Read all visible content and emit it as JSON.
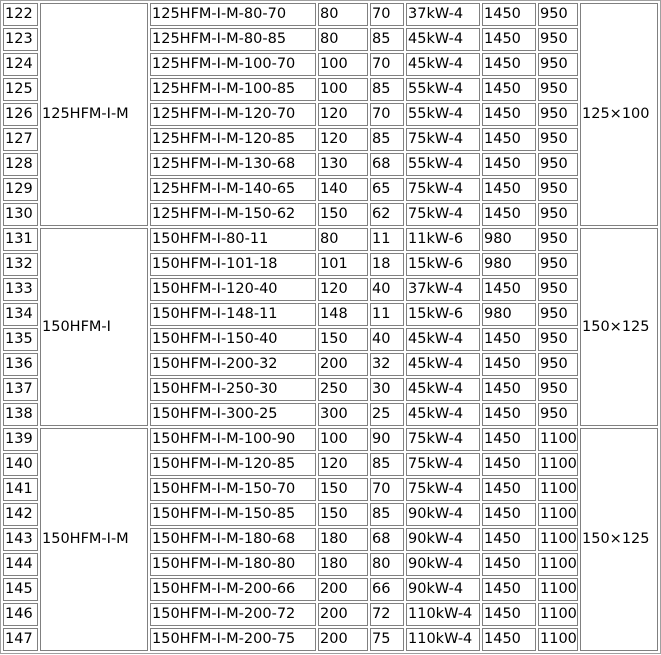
{
  "table": {
    "groups": [
      {
        "series": "125HFM-I-M",
        "size": "125×100",
        "rows": [
          [
            "122",
            "125HFM-I-M-80-70",
            "80",
            "70",
            "37kW-4",
            "1450",
            "950"
          ],
          [
            "123",
            "125HFM-I-M-80-85",
            "80",
            "85",
            "45kW-4",
            "1450",
            "950"
          ],
          [
            "124",
            "125HFM-I-M-100-70",
            "100",
            "70",
            "45kW-4",
            "1450",
            "950"
          ],
          [
            "125",
            "125HFM-I-M-100-85",
            "100",
            "85",
            "55kW-4",
            "1450",
            "950"
          ],
          [
            "126",
            "125HFM-I-M-120-70",
            "120",
            "70",
            "55kW-4",
            "1450",
            "950"
          ],
          [
            "127",
            "125HFM-I-M-120-85",
            "120",
            "85",
            "75kW-4",
            "1450",
            "950"
          ],
          [
            "128",
            "125HFM-I-M-130-68",
            "130",
            "68",
            "55kW-4",
            "1450",
            "950"
          ],
          [
            "129",
            "125HFM-I-M-140-65",
            "140",
            "65",
            "75kW-4",
            "1450",
            "950"
          ],
          [
            "130",
            "125HFM-I-M-150-62",
            "150",
            "62",
            "75kW-4",
            "1450",
            "950"
          ]
        ]
      },
      {
        "series": "150HFM-I",
        "size": "150×125",
        "rows": [
          [
            "131",
            "150HFM-I-80-11",
            "80",
            "11",
            "11kW-6",
            "980",
            "950"
          ],
          [
            "132",
            "150HFM-I-101-18",
            "101",
            "18",
            "15kW-6",
            "980",
            "950"
          ],
          [
            "133",
            "150HFM-I-120-40",
            "120",
            "40",
            "37kW-4",
            "1450",
            "950"
          ],
          [
            "134",
            "150HFM-I-148-11",
            "148",
            "11",
            "15kW-6",
            "980",
            "950"
          ],
          [
            "135",
            "150HFM-I-150-40",
            "150",
            "40",
            "45kW-4",
            "1450",
            "950"
          ],
          [
            "136",
            "150HFM-I-200-32",
            "200",
            "32",
            "45kW-4",
            "1450",
            "950"
          ],
          [
            "137",
            "150HFM-I-250-30",
            "250",
            "30",
            "45kW-4",
            "1450",
            "950"
          ],
          [
            "138",
            "150HFM-I-300-25",
            "300",
            "25",
            "45kW-4",
            "1450",
            "950"
          ]
        ]
      },
      {
        "series": "150HFM-I-M",
        "size": "150×125",
        "rows": [
          [
            "139",
            "150HFM-I-M-100-90",
            "100",
            "90",
            "75kW-4",
            "1450",
            "1100"
          ],
          [
            "140",
            "150HFM-I-M-120-85",
            "120",
            "85",
            "75kW-4",
            "1450",
            "1100"
          ],
          [
            "141",
            "150HFM-I-M-150-70",
            "150",
            "70",
            "75kW-4",
            "1450",
            "1100"
          ],
          [
            "142",
            "150HFM-I-M-150-85",
            "150",
            "85",
            "90kW-4",
            "1450",
            "1100"
          ],
          [
            "143",
            "150HFM-I-M-180-68",
            "180",
            "68",
            "90kW-4",
            "1450",
            "1100"
          ],
          [
            "144",
            "150HFM-I-M-180-80",
            "180",
            "80",
            "90kW-4",
            "1450",
            "1100"
          ],
          [
            "145",
            "150HFM-I-M-200-66",
            "200",
            "66",
            "90kW-4",
            "1450",
            "1100"
          ],
          [
            "146",
            "150HFM-I-M-200-72",
            "200",
            "72",
            "110kW-4",
            "1450",
            "1100"
          ],
          [
            "147",
            "150HFM-I-M-200-75",
            "200",
            "75",
            "110kW-4",
            "1450",
            "1100"
          ]
        ]
      }
    ]
  }
}
